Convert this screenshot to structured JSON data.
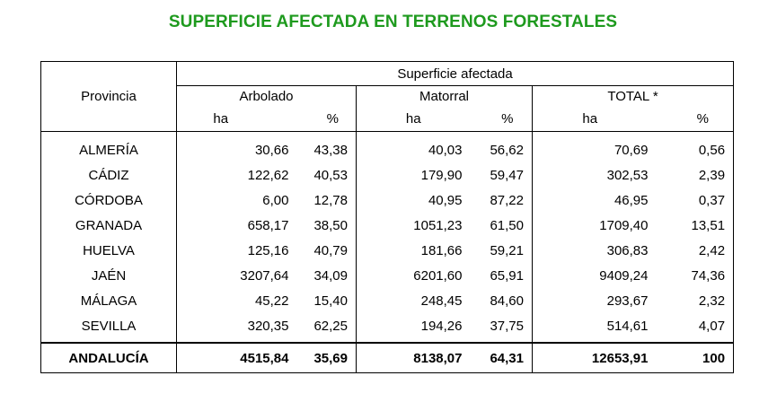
{
  "title": "SUPERFICIE AFECTADA EN TERRENOS FORESTALES",
  "colors": {
    "title": "#1e9a1e",
    "text": "#000000",
    "border": "#000000"
  },
  "headers": {
    "provincia": "Provincia",
    "superficie_afectada": "Superficie afectada",
    "arbolado": "Arbolado",
    "matorral": "Matorral",
    "total": "TOTAL *",
    "ha": "ha",
    "pct": "%"
  },
  "rows": [
    {
      "provincia": "ALMERÍA",
      "arb_ha": "30,66",
      "arb_pct": "43,38",
      "mat_ha": "40,03",
      "mat_pct": "56,62",
      "tot_ha": "70,69",
      "tot_pct": "0,56"
    },
    {
      "provincia": "CÁDIZ",
      "arb_ha": "122,62",
      "arb_pct": "40,53",
      "mat_ha": "179,90",
      "mat_pct": "59,47",
      "tot_ha": "302,53",
      "tot_pct": "2,39"
    },
    {
      "provincia": "CÓRDOBA",
      "arb_ha": "6,00",
      "arb_pct": "12,78",
      "mat_ha": "40,95",
      "mat_pct": "87,22",
      "tot_ha": "46,95",
      "tot_pct": "0,37"
    },
    {
      "provincia": "GRANADA",
      "arb_ha": "658,17",
      "arb_pct": "38,50",
      "mat_ha": "1051,23",
      "mat_pct": "61,50",
      "tot_ha": "1709,40",
      "tot_pct": "13,51"
    },
    {
      "provincia": "HUELVA",
      "arb_ha": "125,16",
      "arb_pct": "40,79",
      "mat_ha": "181,66",
      "mat_pct": "59,21",
      "tot_ha": "306,83",
      "tot_pct": "2,42"
    },
    {
      "provincia": "JAÉN",
      "arb_ha": "3207,64",
      "arb_pct": "34,09",
      "mat_ha": "6201,60",
      "mat_pct": "65,91",
      "tot_ha": "9409,24",
      "tot_pct": "74,36"
    },
    {
      "provincia": "MÁLAGA",
      "arb_ha": "45,22",
      "arb_pct": "15,40",
      "mat_ha": "248,45",
      "mat_pct": "84,60",
      "tot_ha": "293,67",
      "tot_pct": "2,32"
    },
    {
      "provincia": "SEVILLA",
      "arb_ha": "320,35",
      "arb_pct": "62,25",
      "mat_ha": "194,26",
      "mat_pct": "37,75",
      "tot_ha": "514,61",
      "tot_pct": "4,07"
    }
  ],
  "total_row": {
    "provincia": "ANDALUCÍA",
    "arb_ha": "4515,84",
    "arb_pct": "35,69",
    "mat_ha": "8138,07",
    "mat_pct": "64,31",
    "tot_ha": "12653,91",
    "tot_pct": "100"
  }
}
